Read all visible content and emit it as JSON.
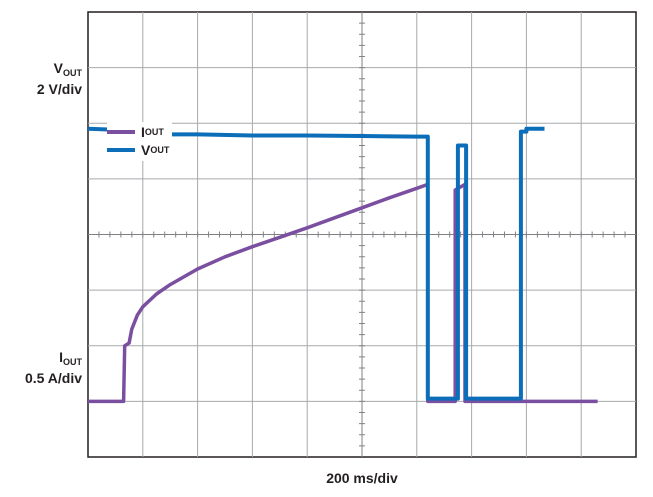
{
  "chart_data": {
    "type": "line",
    "xlabel": "200 ms/div",
    "x_divisions": 10,
    "y_divisions": 8,
    "grid": true,
    "legend_position": "top-left",
    "axis_labels": {
      "vout": {
        "name": "V",
        "sub": "OUT",
        "scale": "2 V/div"
      },
      "iout": {
        "name": "I",
        "sub": "OUT",
        "scale": "0.5 A/div"
      }
    },
    "series": [
      {
        "name": "I",
        "sub": "OUT",
        "color": "#7b4fa0",
        "x_unit": "div",
        "y_unit": "div",
        "points": [
          [
            0,
            1.0
          ],
          [
            0.65,
            1.0
          ],
          [
            0.67,
            2.0
          ],
          [
            0.75,
            2.05
          ],
          [
            0.8,
            2.3
          ],
          [
            0.9,
            2.55
          ],
          [
            1.0,
            2.7
          ],
          [
            1.25,
            2.93
          ],
          [
            1.5,
            3.1
          ],
          [
            2.0,
            3.38
          ],
          [
            2.5,
            3.6
          ],
          [
            3.0,
            3.78
          ],
          [
            3.5,
            3.95
          ],
          [
            4.0,
            4.12
          ],
          [
            4.5,
            4.3
          ],
          [
            5.0,
            4.48
          ],
          [
            5.5,
            4.66
          ],
          [
            6.0,
            4.83
          ],
          [
            6.2,
            4.9
          ],
          [
            6.2,
            1.0
          ],
          [
            6.7,
            1.0
          ],
          [
            6.7,
            4.8
          ],
          [
            6.88,
            4.9
          ],
          [
            6.88,
            1.0
          ],
          [
            8.0,
            1.0
          ],
          [
            9.3,
            1.0
          ]
        ]
      },
      {
        "name": "V",
        "sub": "OUT",
        "color": "#0c6db8",
        "x_unit": "div",
        "y_unit": "div",
        "points": [
          [
            0,
            5.9
          ],
          [
            0.55,
            5.88
          ],
          [
            0.6,
            5.8
          ],
          [
            1.0,
            5.8
          ],
          [
            2.0,
            5.8
          ],
          [
            3.0,
            5.78
          ],
          [
            4.0,
            5.78
          ],
          [
            5.0,
            5.77
          ],
          [
            6.0,
            5.76
          ],
          [
            6.2,
            5.76
          ],
          [
            6.2,
            1.05
          ],
          [
            6.75,
            1.05
          ],
          [
            6.75,
            5.6
          ],
          [
            6.9,
            5.6
          ],
          [
            6.9,
            1.05
          ],
          [
            7.9,
            1.05
          ],
          [
            7.9,
            5.85
          ],
          [
            8.0,
            5.85
          ],
          [
            8.0,
            5.9
          ],
          [
            8.33,
            5.9
          ]
        ]
      }
    ]
  }
}
